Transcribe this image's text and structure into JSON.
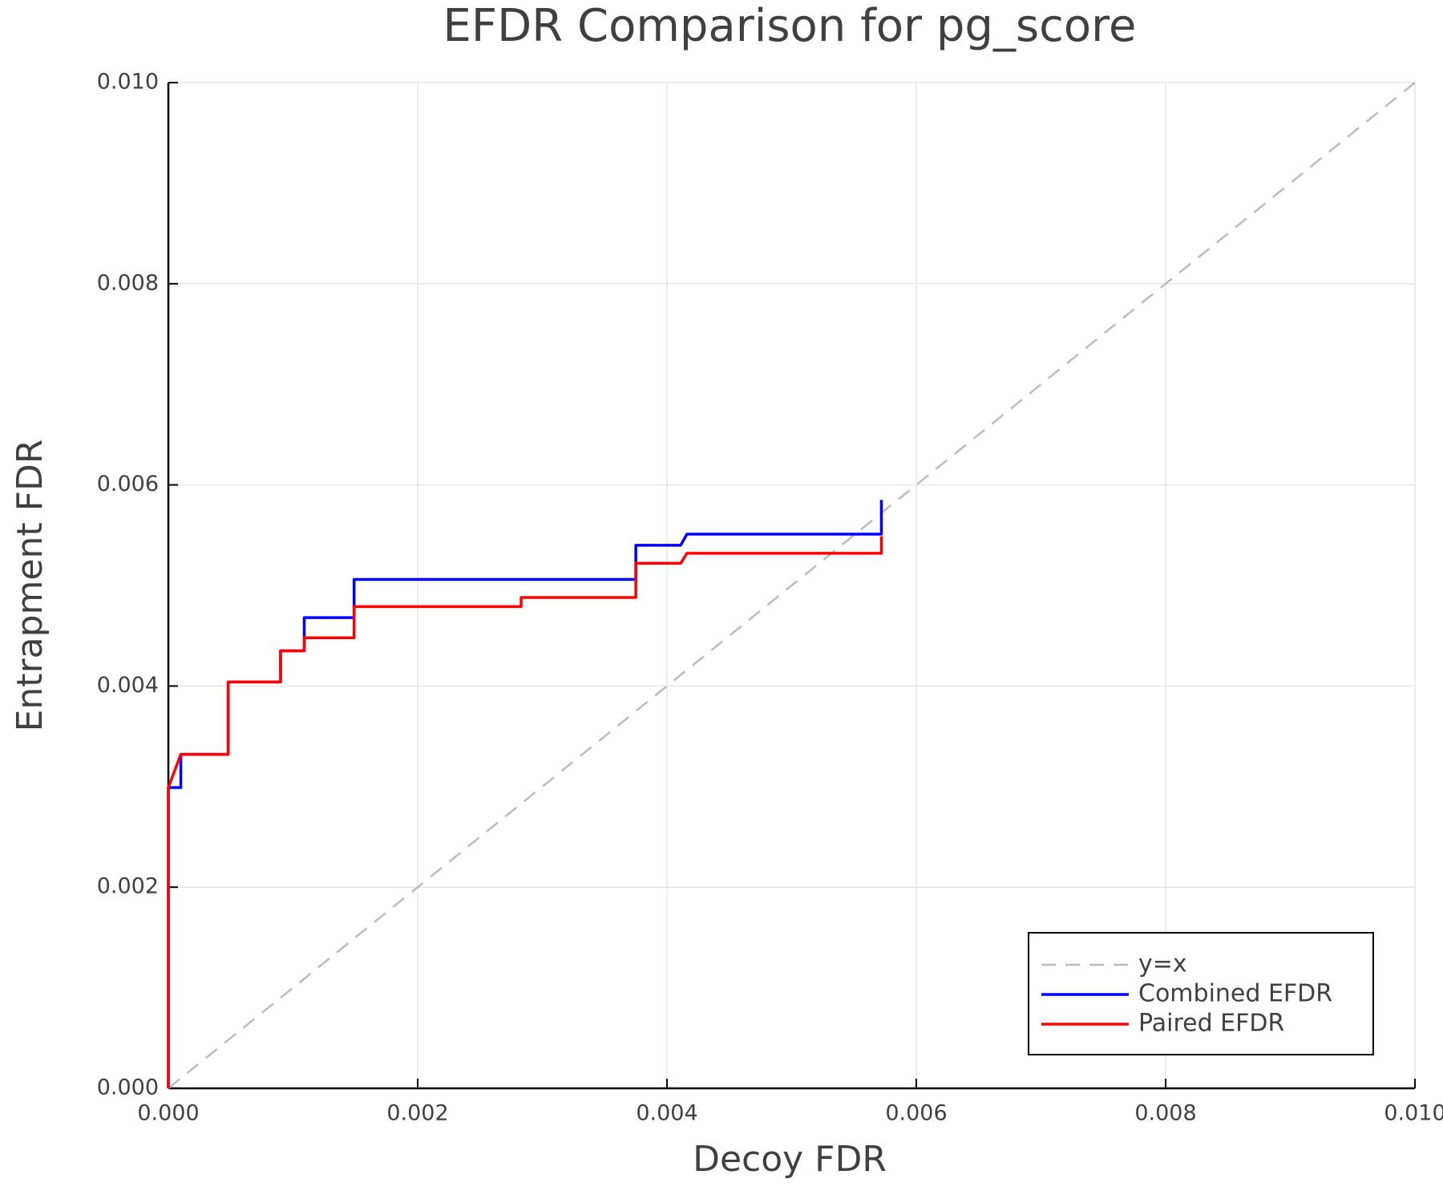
{
  "chart_data": {
    "type": "line",
    "title": "EFDR Comparison for pg_score",
    "x_label": "Decoy FDR",
    "y_label": "Entrapment FDR",
    "xlim": [
      0,
      0.01
    ],
    "ylim": [
      0,
      0.01
    ],
    "xticks": [
      {
        "value": 0,
        "label": "0.000"
      },
      {
        "value": 0.002,
        "label": "0.002"
      },
      {
        "value": 0.004,
        "label": "0.004"
      },
      {
        "value": 0.006,
        "label": "0.006"
      },
      {
        "value": 0.008,
        "label": "0.008"
      },
      {
        "value": 0.01,
        "label": "0.010"
      }
    ],
    "yticks": [
      {
        "value": 0,
        "label": "0.000"
      },
      {
        "value": 0.002,
        "label": "0.002"
      },
      {
        "value": 0.004,
        "label": "0.004"
      },
      {
        "value": 0.006,
        "label": "0.006"
      },
      {
        "value": 0.008,
        "label": "0.008"
      },
      {
        "value": 0.01,
        "label": "0.010"
      }
    ],
    "grid": true,
    "legend": "lower right",
    "series": [
      {
        "name": "y=x",
        "color": "#bbbbbb",
        "dash": true,
        "x": [
          0,
          0.01
        ],
        "values": [
          0,
          0.01
        ]
      },
      {
        "name": "Combined EFDR",
        "color": "#0000ff",
        "dash": false,
        "x": [
          0,
          0,
          0.0001,
          0.0001,
          0.00048,
          0.00048,
          0.0009,
          0.0009,
          0.00109,
          0.00109,
          0.00149,
          0.00149,
          0.00375,
          0.00375,
          0.00411,
          0.00416,
          0.00572,
          0.00572
        ],
        "values": [
          0,
          0.00299,
          0.00299,
          0.00332,
          0.00332,
          0.00404,
          0.00404,
          0.00435,
          0.00435,
          0.00468,
          0.00468,
          0.00506,
          0.00506,
          0.0054,
          0.0054,
          0.00551,
          0.00551,
          0.00585
        ]
      },
      {
        "name": "Paired EFDR",
        "color": "#ff0000",
        "dash": false,
        "x": [
          0,
          0,
          0.0001,
          0.00048,
          0.00048,
          0.0009,
          0.0009,
          0.00109,
          0.00109,
          0.00149,
          0.00149,
          0.00283,
          0.00283,
          0.00375,
          0.00375,
          0.00411,
          0.00416,
          0.00572,
          0.00572
        ],
        "values": [
          0,
          0.00299,
          0.00332,
          0.00332,
          0.00404,
          0.00404,
          0.00435,
          0.00435,
          0.00448,
          0.00448,
          0.00479,
          0.00479,
          0.00488,
          0.00488,
          0.00522,
          0.00522,
          0.00532,
          0.00532,
          0.00549
        ]
      }
    ]
  }
}
